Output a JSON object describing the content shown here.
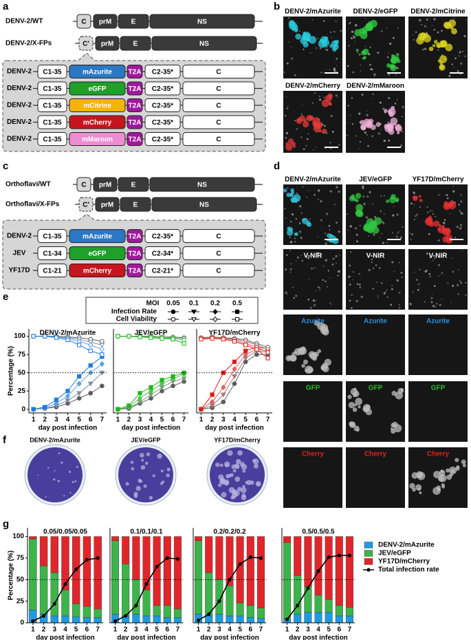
{
  "panel_labels": [
    "a",
    "b",
    "c",
    "d",
    "e",
    "f",
    "g"
  ],
  "a": {
    "wt": {
      "label": "DENV-2/WT",
      "genes": [
        "C",
        "prM",
        "E",
        "NS"
      ]
    },
    "fp": {
      "label": "DENV-2/X-FPs",
      "genes": [
        "C'",
        "prM",
        "E",
        "NS"
      ]
    },
    "constructs": [
      {
        "virus": "DENV-2",
        "c1": "C1-35",
        "fp": "mAzurite",
        "color": "#2a78c4",
        "t2a": "T2A",
        "c2": "C2-35*",
        "c": "C"
      },
      {
        "virus": "DENV-2",
        "c1": "C1-35",
        "fp": "eGFP",
        "color": "#1ea02a",
        "t2a": "T2A",
        "c2": "C2-35*",
        "c": "C"
      },
      {
        "virus": "DENV-2",
        "c1": "C1-35",
        "fp": "mCitrine",
        "color": "#f5b400",
        "t2a": "T2A",
        "c2": "C2-35*",
        "c": "C"
      },
      {
        "virus": "DENV-2",
        "c1": "C1-35",
        "fp": "mCherry",
        "color": "#c8141e",
        "t2a": "T2A",
        "c2": "C2-35*",
        "c": "C"
      },
      {
        "virus": "DENV-2",
        "c1": "C1-35",
        "fp": "mMaroon",
        "color": "#f08cd2",
        "t2a": "T2A",
        "c2": "C2-35*",
        "c": "C"
      }
    ]
  },
  "b": {
    "images": [
      {
        "label": "DENV-2/mAzurite",
        "color": "#2ad0e0"
      },
      {
        "label": "DENV-2/eGFP",
        "color": "#30d040"
      },
      {
        "label": "DENV-2/mCitrine",
        "color": "#e0d820"
      },
      {
        "label": "DENV-2/mCherry",
        "color": "#e83a3a"
      },
      {
        "label": "DENV-2/mMaroon",
        "color": "#f0b0d8"
      }
    ]
  },
  "c": {
    "wt": {
      "label": "Orthoflavi/WT",
      "genes": [
        "C",
        "prM",
        "E",
        "NS"
      ]
    },
    "fp": {
      "label": "Orthoflavi/X-FPs",
      "genes": [
        "C'",
        "prM",
        "E",
        "NS"
      ]
    },
    "constructs": [
      {
        "virus": "DENV-2",
        "c1": "C1-35",
        "fp": "mAzurite",
        "color": "#2a78c4",
        "t2a": "T2A",
        "c2": "C2-35*",
        "c": "C"
      },
      {
        "virus": "JEV",
        "c1": "C1-34",
        "fp": "eGFP",
        "color": "#1ea02a",
        "t2a": "T2A",
        "c2": "C2-34*",
        "c": "C"
      },
      {
        "virus": "YF17D",
        "c1": "C1-21",
        "fp": "mCherry",
        "color": "#c8141e",
        "t2a": "T2A",
        "c2": "C2-21*",
        "c": "C"
      }
    ]
  },
  "d": {
    "columns": [
      {
        "label": "DENV-2/mAzurite",
        "color": "#30c8e0"
      },
      {
        "label": "JEV/eGFP",
        "color": "#30c840"
      },
      {
        "label": "YF17D/mCherry",
        "color": "#e83030"
      }
    ],
    "rows": [
      {
        "labels": [
          "V-NIR",
          "V-NIR",
          "V-NIR"
        ],
        "color": "#ffffff"
      },
      {
        "labels": [
          "Azurite",
          "Azurite",
          "Azurite"
        ],
        "color": "#2a90e0"
      },
      {
        "labels": [
          "GFP",
          "GFP",
          "GFP"
        ],
        "color": "#2eb82e"
      },
      {
        "labels": [
          "Cherry",
          "Cherry",
          "Cherry"
        ],
        "color": "#e02020"
      }
    ]
  },
  "e": {
    "legend": {
      "title": "MOI",
      "mois": [
        "0.05",
        "0.1",
        "0.2",
        "0.5"
      ],
      "rows": [
        "Infection Rate",
        "Cell Viability"
      ]
    }
  },
  "f": {
    "plates": [
      "DENV-2/mAzurite",
      "JEV/eGFP",
      "YF17D/mCherry"
    ]
  },
  "chart_data": [
    {
      "type": "line",
      "title": "DENV-2/mAzurite",
      "xlabel": "day post infection",
      "ylabel": "Percentage (%)",
      "x": [
        1,
        2,
        3,
        4,
        5,
        6,
        7
      ],
      "xticks": [
        1,
        2,
        3,
        4,
        5,
        6,
        7
      ],
      "xlim": [
        0.6,
        7.4
      ],
      "ylim": [
        -5,
        110
      ],
      "yticks": [
        0,
        25,
        50,
        75,
        100
      ],
      "hline": 50,
      "series": [
        {
          "color": "#5c5c5c",
          "marker": "circle",
          "filled": true,
          "values": [
            0,
            1,
            3,
            8,
            15,
            22,
            32
          ]
        },
        {
          "color": "#7d8ea6",
          "marker": "triangle",
          "filled": true,
          "values": [
            0,
            1,
            5,
            12,
            22,
            35,
            50
          ]
        },
        {
          "color": "#5e9de0",
          "marker": "diamond",
          "filled": true,
          "values": [
            0,
            2,
            8,
            18,
            35,
            50,
            62
          ]
        },
        {
          "color": "#1c7be0",
          "marker": "square",
          "filled": true,
          "values": [
            0,
            3,
            13,
            25,
            45,
            60,
            72
          ]
        },
        {
          "color": "#5c5c5c",
          "marker": "circle",
          "filled": false,
          "values": [
            100,
            100,
            100,
            99,
            98,
            96,
            93
          ]
        },
        {
          "color": "#7d8ea6",
          "marker": "triangle",
          "filled": false,
          "values": [
            100,
            100,
            99,
            98,
            96,
            92,
            88
          ]
        },
        {
          "color": "#5e9de0",
          "marker": "diamond",
          "filled": false,
          "values": [
            100,
            100,
            99,
            97,
            93,
            88,
            82
          ]
        },
        {
          "color": "#1c7be0",
          "marker": "square",
          "filled": false,
          "values": [
            100,
            100,
            98,
            95,
            88,
            80,
            75
          ]
        }
      ]
    },
    {
      "type": "line",
      "title": "JEV/eGFP",
      "xlabel": "day post infection",
      "x": [
        1,
        2,
        3,
        4,
        5,
        6,
        7
      ],
      "xticks": [
        1,
        2,
        3,
        4,
        5,
        6,
        7
      ],
      "xlim": [
        0.6,
        7.4
      ],
      "ylim": [
        -5,
        110
      ],
      "hline": 50,
      "series": [
        {
          "color": "#5c5c5c",
          "marker": "circle",
          "filled": true,
          "values": [
            0,
            1,
            8,
            15,
            25,
            32,
            38
          ]
        },
        {
          "color": "#7aa07a",
          "marker": "triangle",
          "filled": true,
          "values": [
            0,
            2,
            10,
            20,
            30,
            38,
            42
          ]
        },
        {
          "color": "#55c055",
          "marker": "diamond",
          "filled": true,
          "values": [
            0,
            3,
            15,
            25,
            35,
            42,
            48
          ]
        },
        {
          "color": "#18b818",
          "marker": "square",
          "filled": true,
          "values": [
            0,
            5,
            22,
            30,
            40,
            45,
            50
          ]
        },
        {
          "color": "#5c5c5c",
          "marker": "circle",
          "filled": false,
          "values": [
            100,
            100,
            100,
            100,
            99,
            99,
            98
          ]
        },
        {
          "color": "#7aa07a",
          "marker": "triangle",
          "filled": false,
          "values": [
            100,
            100,
            100,
            99,
            99,
            98,
            97
          ]
        },
        {
          "color": "#55c055",
          "marker": "diamond",
          "filled": false,
          "values": [
            100,
            100,
            99,
            99,
            98,
            97,
            95
          ]
        },
        {
          "color": "#18b818",
          "marker": "square",
          "filled": false,
          "values": [
            100,
            100,
            99,
            98,
            97,
            96,
            90
          ]
        }
      ]
    },
    {
      "type": "line",
      "title": "YF17D/mCherry",
      "xlabel": "day post infection",
      "x": [
        1,
        2,
        3,
        4,
        5,
        6,
        7
      ],
      "xticks": [
        1,
        2,
        3,
        4,
        5,
        6,
        7
      ],
      "xlim": [
        0.6,
        7.4
      ],
      "ylim": [
        -5,
        110
      ],
      "hline": 50,
      "series": [
        {
          "color": "#5c5c5c",
          "marker": "circle",
          "filled": true,
          "values": [
            0,
            2,
            10,
            35,
            65,
            75,
            75
          ]
        },
        {
          "color": "#a07a7a",
          "marker": "triangle",
          "filled": true,
          "values": [
            0,
            5,
            20,
            45,
            70,
            80,
            78
          ]
        },
        {
          "color": "#e06060",
          "marker": "diamond",
          "filled": true,
          "values": [
            0,
            10,
            30,
            55,
            75,
            82,
            80
          ]
        },
        {
          "color": "#e01818",
          "marker": "square",
          "filled": true,
          "values": [
            0,
            20,
            50,
            65,
            80,
            85,
            83
          ]
        },
        {
          "color": "#5c5c5c",
          "marker": "circle",
          "filled": false,
          "values": [
            98,
            99,
            98,
            97,
            95,
            90,
            85
          ]
        },
        {
          "color": "#a07a7a",
          "marker": "triangle",
          "filled": false,
          "values": [
            97,
            98,
            97,
            96,
            93,
            88,
            82
          ]
        },
        {
          "color": "#e06060",
          "marker": "diamond",
          "filled": false,
          "values": [
            97,
            98,
            97,
            95,
            90,
            85,
            78
          ]
        },
        {
          "color": "#e01818",
          "marker": "square",
          "filled": false,
          "values": [
            96,
            97,
            96,
            93,
            88,
            82,
            70
          ]
        }
      ]
    },
    {
      "type": "bar",
      "stacked": true,
      "title": "0.05/0.05/0.05",
      "xlabel": "day post infection",
      "ylabel": "Percentage (%)",
      "x": [
        1,
        2,
        3,
        4,
        5,
        6,
        7
      ],
      "xticks": [
        1,
        2,
        3,
        4,
        5,
        6,
        7
      ],
      "xlim": [
        0.5,
        7.5
      ],
      "ylim": [
        0,
        110
      ],
      "yticks": [
        0,
        25,
        50,
        75,
        100
      ],
      "hline": 50,
      "series": [
        {
          "name": "DENV-2/mAzurite",
          "color": "#1e9be0",
          "values": [
            15,
            10,
            8,
            8,
            7,
            6,
            6
          ]
        },
        {
          "name": "JEV/eGFP",
          "color": "#3cb44a",
          "values": [
            82,
            56,
            50,
            30,
            15,
            13,
            10
          ]
        },
        {
          "name": "YF17D/mCherry",
          "color": "#e0262b",
          "values": [
            3,
            34,
            42,
            62,
            78,
            81,
            84
          ]
        },
        {
          "name": "Total infection rate",
          "type": "line",
          "color": "#000000",
          "values": [
            2,
            8,
            22,
            45,
            62,
            73,
            75
          ]
        }
      ]
    },
    {
      "type": "bar",
      "stacked": true,
      "title": "0.1/0.1/0.1",
      "xlabel": "day post infection",
      "x": [
        1,
        2,
        3,
        4,
        5,
        6,
        7
      ],
      "xticks": [
        1,
        2,
        3,
        4,
        5,
        6,
        7
      ],
      "xlim": [
        0.5,
        7.5
      ],
      "ylim": [
        0,
        110
      ],
      "hline": 50,
      "series": [
        {
          "color": "#1e9be0",
          "values": [
            10,
            8,
            10,
            8,
            8,
            6,
            6
          ]
        },
        {
          "color": "#3cb44a",
          "values": [
            85,
            60,
            40,
            30,
            12,
            14,
            10
          ]
        },
        {
          "color": "#e0262b",
          "values": [
            5,
            32,
            50,
            62,
            80,
            80,
            84
          ]
        },
        {
          "type": "line",
          "color": "#000000",
          "values": [
            2,
            8,
            20,
            45,
            65,
            75,
            74
          ]
        }
      ]
    },
    {
      "type": "bar",
      "stacked": true,
      "title": "0.2/0.2/0.2",
      "xlabel": "day post infection",
      "x": [
        1,
        2,
        3,
        4,
        5,
        6,
        7
      ],
      "xticks": [
        1,
        2,
        3,
        4,
        5,
        6,
        7
      ],
      "xlim": [
        0.5,
        7.5
      ],
      "ylim": [
        0,
        110
      ],
      "hline": 50,
      "series": [
        {
          "color": "#1e9be0",
          "values": [
            10,
            8,
            10,
            8,
            8,
            6,
            5
          ]
        },
        {
          "color": "#3cb44a",
          "values": [
            85,
            50,
            40,
            35,
            15,
            14,
            12
          ]
        },
        {
          "color": "#e0262b",
          "values": [
            5,
            42,
            50,
            57,
            77,
            80,
            83
          ]
        },
        {
          "type": "line",
          "color": "#000000",
          "values": [
            3,
            10,
            25,
            50,
            68,
            76,
            75
          ]
        }
      ]
    },
    {
      "type": "bar",
      "stacked": true,
      "title": "0.5/0.5/0.5",
      "xlabel": "day post infection",
      "x": [
        1,
        2,
        3,
        4,
        5,
        6,
        7
      ],
      "xticks": [
        1,
        2,
        3,
        4,
        5,
        6,
        7
      ],
      "xlim": [
        0.5,
        7.5
      ],
      "ylim": [
        0,
        110
      ],
      "hline": 50,
      "series": [
        {
          "color": "#1e9be0",
          "values": [
            5,
            10,
            12,
            12,
            12,
            8,
            8
          ]
        },
        {
          "color": "#3cb44a",
          "values": [
            88,
            45,
            30,
            20,
            15,
            12,
            10
          ]
        },
        {
          "color": "#e0262b",
          "values": [
            7,
            45,
            58,
            68,
            73,
            80,
            82
          ]
        },
        {
          "type": "line",
          "color": "#000000",
          "values": [
            4,
            20,
            40,
            60,
            76,
            78,
            78
          ]
        }
      ]
    }
  ]
}
